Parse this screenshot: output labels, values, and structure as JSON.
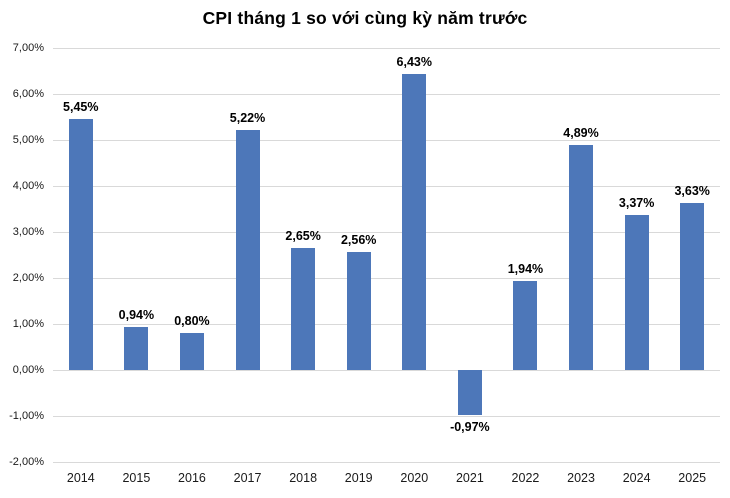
{
  "page": {
    "background_color": "#ffffff"
  },
  "chart_data": {
    "type": "bar",
    "title": "CPI tháng 1 so với cùng kỳ năm trước",
    "xlabel": "",
    "ylabel": "",
    "categories": [
      "2014",
      "2015",
      "2016",
      "2017",
      "2018",
      "2019",
      "2020",
      "2021",
      "2022",
      "2023",
      "2024",
      "2025"
    ],
    "values": [
      5.45,
      0.94,
      0.8,
      5.22,
      2.65,
      2.56,
      6.43,
      -0.97,
      1.94,
      4.89,
      3.37,
      3.63
    ],
    "value_labels": [
      "5,45%",
      "0,94%",
      "0,80%",
      "5,22%",
      "2,65%",
      "2,56%",
      "6,43%",
      "-0,97%",
      "1,94%",
      "4,89%",
      "3,37%",
      "3,63%"
    ],
    "y_ticks": [
      {
        "value": 7,
        "label": "7,00%"
      },
      {
        "value": 6,
        "label": "6,00%"
      },
      {
        "value": 5,
        "label": "5,00%"
      },
      {
        "value": 4,
        "label": "4,00%"
      },
      {
        "value": 3,
        "label": "3,00%"
      },
      {
        "value": 2,
        "label": "2,00%"
      },
      {
        "value": 1,
        "label": "1,00%"
      },
      {
        "value": 0,
        "label": "0,00%"
      },
      {
        "value": -1,
        "label": "-1,00%"
      },
      {
        "value": -2,
        "label": "-2,00%"
      }
    ],
    "ylim": [
      -2,
      7
    ],
    "grid": true,
    "legend_position": "none",
    "bar_color": "#4d77b9",
    "gridline_color": "#d9d9d9",
    "title_color": "#000000",
    "data_label_color": "#000000",
    "axis_text_color": "#1a1a1a"
  }
}
